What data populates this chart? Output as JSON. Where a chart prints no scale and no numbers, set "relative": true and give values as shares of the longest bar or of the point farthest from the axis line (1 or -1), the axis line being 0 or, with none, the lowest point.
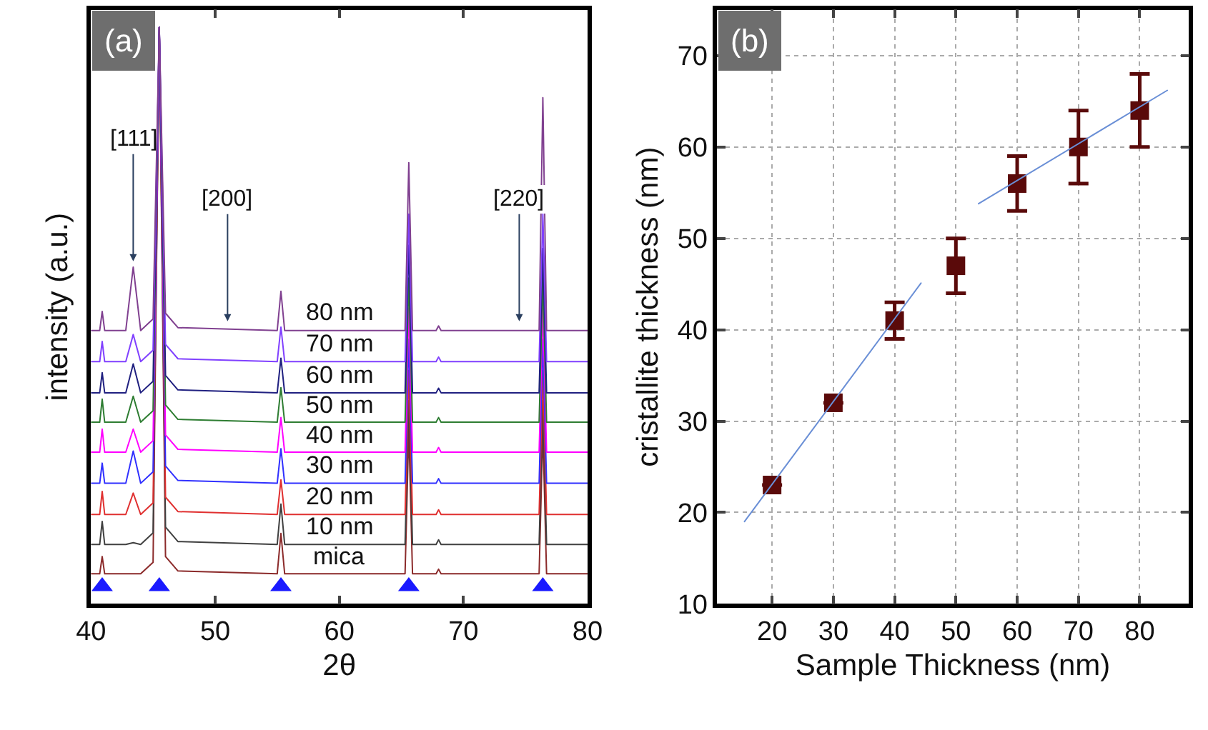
{
  "chart_data": [
    {
      "type": "line",
      "relative": true,
      "xlabel": "2θ",
      "ylabel": "intensity (a.u.)",
      "tick_labels": "x",
      "xlim": [
        40,
        80
      ],
      "xticks": [
        40,
        50,
        60,
        70,
        80
      ],
      "x": [
        40,
        40.7,
        40.9,
        41.1,
        42.8,
        43.4,
        44.0,
        45.0,
        45.5,
        46.0,
        47.0,
        55.0,
        55.3,
        55.6,
        65.3,
        65.6,
        65.9,
        67.8,
        68.0,
        68.2,
        76.1,
        76.4,
        76.7,
        80
      ],
      "annotations": [
        "(a)",
        {
          "text": "[111]",
          "x": 43.4,
          "y": 0.594
        },
        "[200]",
        "[220]"
      ],
      "series": [
        {
          "name": "mica",
          "color": "#8b2a2a",
          "values": [
            0.052,
            0.052,
            0.082,
            0.052,
            0.052,
            0.052,
            0.052,
            0.072,
            1,
            0.082,
            0.057,
            0.052,
            0.122,
            0.052,
            0.052,
            0.302,
            0.052,
            0.052,
            0.06,
            0.052,
            0.052,
            0.302,
            0.052,
            0.052
          ]
        },
        {
          "name": "10 nm",
          "color": "#404040",
          "values": [
            0.103,
            0.103,
            0.143,
            0.103,
            0.103,
            0.106,
            0.103,
            0.123,
            1,
            0.133,
            0.108,
            0.103,
            0.173,
            0.103,
            0.103,
            0.353,
            0.103,
            0.103,
            0.111,
            0.103,
            0.103,
            0.353,
            0.103,
            0.103
          ]
        },
        {
          "name": "20 nm",
          "color": "#e03030",
          "values": [
            0.155,
            0.155,
            0.195,
            0.155,
            0.155,
            0.192,
            0.155,
            0.175,
            1,
            0.185,
            0.16,
            0.155,
            0.215,
            0.155,
            0.155,
            0.405,
            0.155,
            0.155,
            0.163,
            0.155,
            0.155,
            0.405,
            0.155,
            0.155
          ]
        },
        {
          "name": "30 nm",
          "color": "#3030ff",
          "values": [
            0.209,
            0.209,
            0.244,
            0.209,
            0.209,
            0.265,
            0.209,
            0.229,
            1,
            0.239,
            0.214,
            0.209,
            0.269,
            0.209,
            0.209,
            0.459,
            0.209,
            0.209,
            0.217,
            0.209,
            0.209,
            0.459,
            0.209,
            0.209
          ]
        },
        {
          "name": "40 nm",
          "color": "#ff00ff",
          "values": [
            0.263,
            0.263,
            0.303,
            0.263,
            0.263,
            0.303,
            0.263,
            0.283,
            1,
            0.293,
            0.268,
            0.263,
            0.323,
            0.263,
            0.263,
            0.513,
            0.263,
            0.263,
            0.271,
            0.263,
            0.263,
            0.513,
            0.263,
            0.263
          ]
        },
        {
          "name": "50 nm",
          "color": "#2e7d32",
          "values": [
            0.315,
            0.315,
            0.355,
            0.315,
            0.315,
            0.36,
            0.315,
            0.335,
            1,
            0.345,
            0.32,
            0.315,
            0.375,
            0.315,
            0.315,
            0.565,
            0.315,
            0.315,
            0.323,
            0.315,
            0.315,
            0.565,
            0.315,
            0.315
          ]
        },
        {
          "name": "60 nm",
          "color": "#202080",
          "values": [
            0.366,
            0.366,
            0.401,
            0.366,
            0.366,
            0.416,
            0.366,
            0.386,
            1,
            0.396,
            0.371,
            0.366,
            0.426,
            0.366,
            0.366,
            0.622,
            0.366,
            0.366,
            0.374,
            0.366,
            0.366,
            0.616,
            0.366,
            0.366
          ]
        },
        {
          "name": "70 nm",
          "color": "#8040ff",
          "values": [
            0.42,
            0.42,
            0.455,
            0.42,
            0.42,
            0.467,
            0.42,
            0.44,
            1,
            0.45,
            0.425,
            0.42,
            0.48,
            0.42,
            0.42,
            0.676,
            0.42,
            0.42,
            0.428,
            0.42,
            0.42,
            0.676,
            0.42,
            0.42
          ]
        },
        {
          "name": "80 nm",
          "color": "#804090",
          "values": [
            0.474,
            0.474,
            0.507,
            0.474,
            0.474,
            0.584,
            0.474,
            0.494,
            1,
            0.504,
            0.479,
            0.474,
            0.542,
            0.474,
            0.474,
            0.765,
            0.474,
            0.474,
            0.482,
            0.474,
            0.474,
            0.878,
            0.474,
            0.474
          ]
        },
        {
          "type": "scatter",
          "marker": "triangle",
          "color": "#1a1aff",
          "x": [
            40.9,
            45.5,
            55.3,
            65.6,
            76.4
          ],
          "values": [
            0.03,
            0.03,
            0.03,
            0.03,
            0.03
          ]
        }
      ]
    },
    {
      "type": "scatter",
      "xlabel": "Sample Thickness (nm)",
      "ylabel": "cristallite thickness (nm)",
      "xlim": [
        11,
        88
      ],
      "ylim": [
        10,
        75
      ],
      "xticks": [
        20,
        30,
        40,
        50,
        60,
        70,
        80
      ],
      "yticks": [
        10,
        20,
        30,
        40,
        50,
        60,
        70
      ],
      "grid": true,
      "x": [
        20,
        30,
        40,
        50,
        60,
        70,
        80
      ],
      "annotations": [
        "(b)"
      ],
      "series": [
        {
          "color": "#5a0a0a",
          "marker": "square",
          "values": [
            23,
            32,
            41,
            47,
            56,
            60,
            64
          ],
          "errors": [
            null,
            null,
            2,
            3,
            3,
            4,
            4
          ]
        },
        {
          "type": "line",
          "color": "#6a8fd6",
          "x": [
            15.5,
            44.3
          ],
          "values": [
            19.0,
            45.1
          ]
        },
        {
          "type": "line",
          "color": "#6a8fd6",
          "x": [
            53.7,
            84.5
          ],
          "values": [
            53.8,
            66.2
          ]
        }
      ]
    }
  ]
}
